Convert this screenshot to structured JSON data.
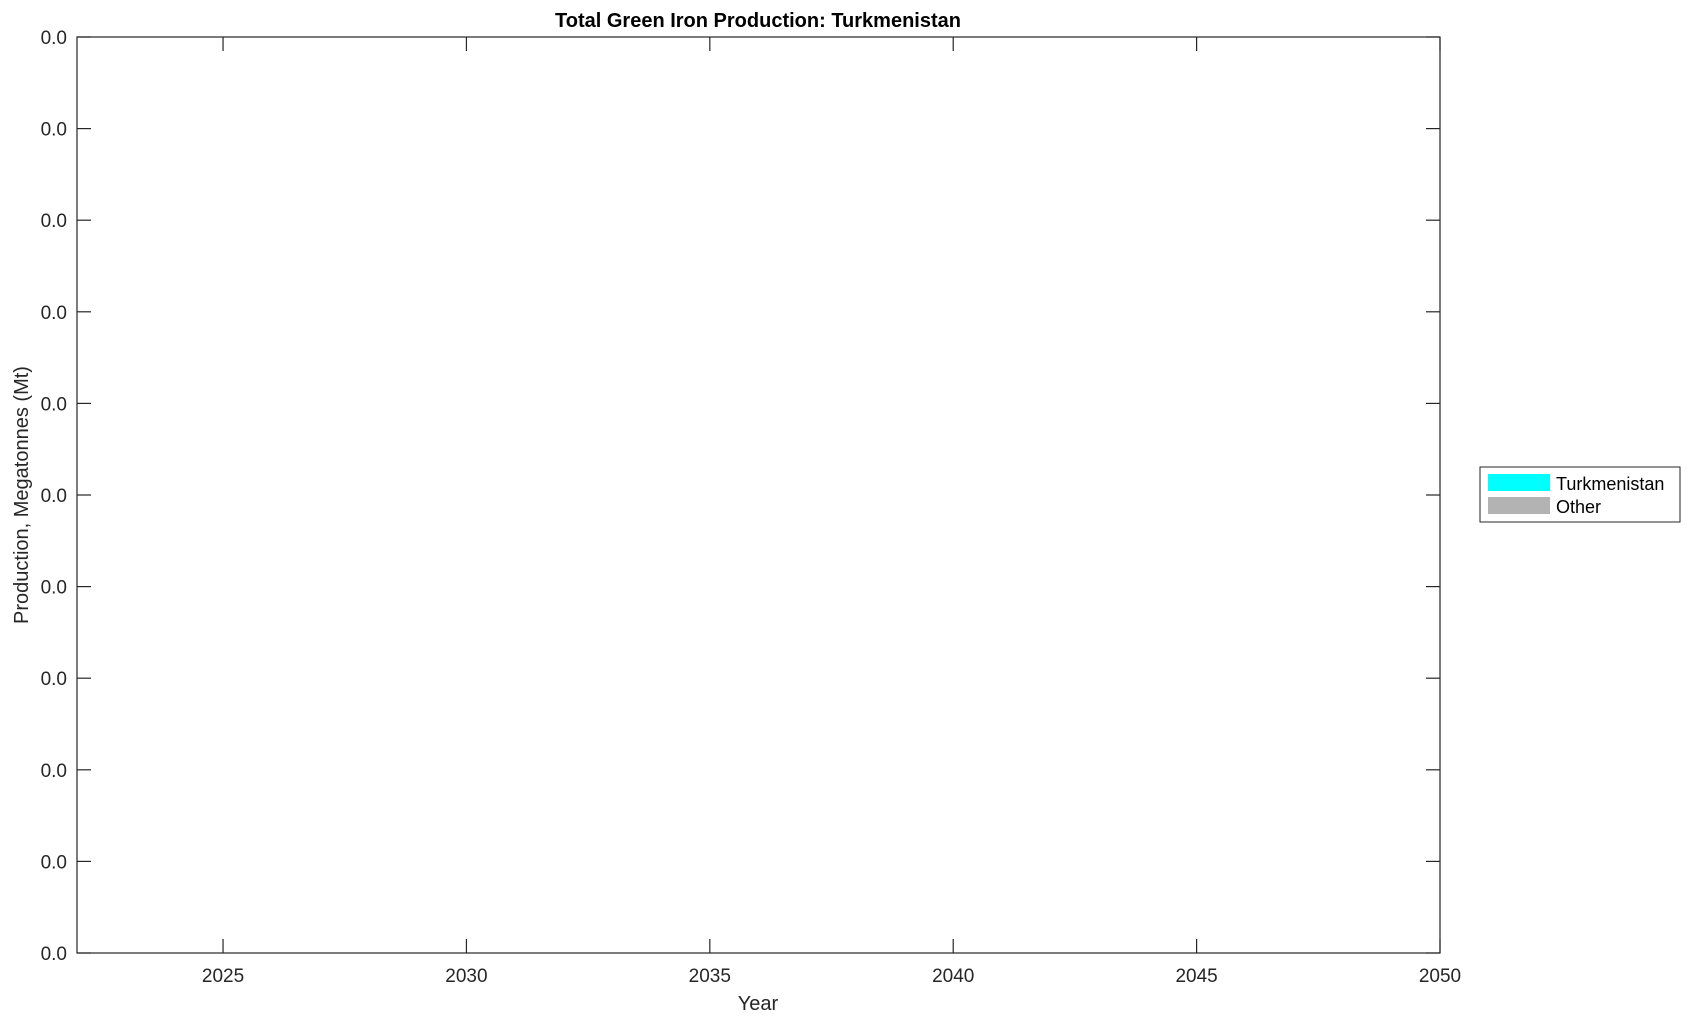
{
  "chart_data": {
    "type": "area",
    "title": "Total Green Iron Production: Turkmenistan",
    "xlabel": "Year",
    "ylabel": "Production, Megatonnes (Mt)",
    "xlim": [
      2022,
      2050
    ],
    "x_ticks": [
      "2025",
      "2030",
      "2035",
      "2040",
      "2045",
      "2050"
    ],
    "x_tick_values": [
      2025,
      2030,
      2035,
      2040,
      2045,
      2050
    ],
    "y_ticks": [
      "0.0",
      "0.0",
      "0.0",
      "0.0",
      "0.0",
      "0.0",
      "0.0",
      "0.0",
      "0.0",
      "0.0",
      "0.0"
    ],
    "grid": false,
    "legend_placement": "right",
    "series": [
      {
        "name": "Turkmenistan",
        "color": "#00ffff",
        "values": []
      },
      {
        "name": "Other",
        "color": "#b3b3b3",
        "values": []
      }
    ]
  }
}
